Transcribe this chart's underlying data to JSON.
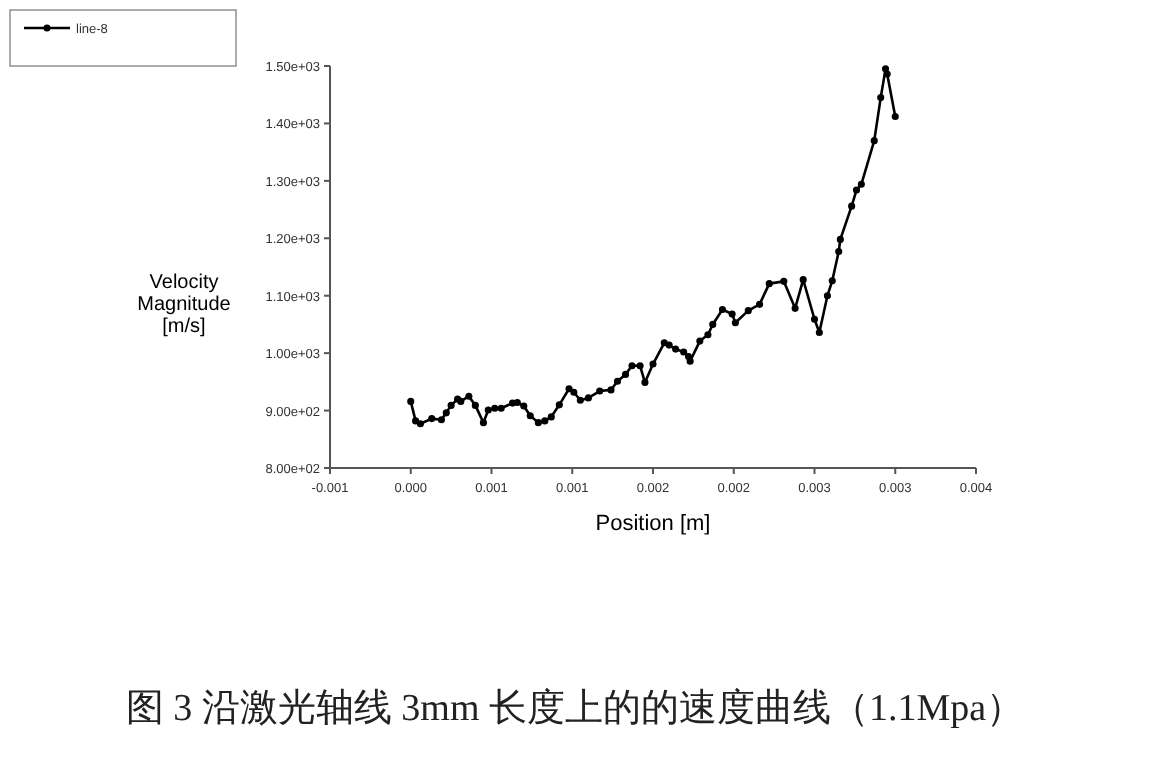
{
  "chart_data": {
    "type": "line",
    "xlabel": "Position [m]",
    "ylabel": "Velocity\nMagnitude\n[m/s]",
    "annotations": [
      "图 3 沿激光轴线 3mm 长度上的的速度曲线（1.1Mpa）"
    ],
    "xlim": [
      -0.0005,
      0.0035
    ],
    "xticks": [
      {
        "value": -0.0005,
        "label": "-0.001"
      },
      {
        "value": 0,
        "label": "0.000"
      },
      {
        "value": 0.0005,
        "label": "0.001"
      },
      {
        "value": 0.001,
        "label": "0.001"
      },
      {
        "value": 0.0015,
        "label": "0.002"
      },
      {
        "value": 0.002,
        "label": "0.002"
      },
      {
        "value": 0.0025,
        "label": "0.003"
      },
      {
        "value": 0.003,
        "label": "0.003"
      },
      {
        "value": 0.0035,
        "label": "0.004"
      }
    ],
    "ylim": [
      800,
      1500
    ],
    "yticks": [
      {
        "value": 800,
        "label": "8.00e+02"
      },
      {
        "value": 900,
        "label": "9.00e+02"
      },
      {
        "value": 1000,
        "label": "1.00e+03"
      },
      {
        "value": 1100,
        "label": "1.10e+03"
      },
      {
        "value": 1200,
        "label": "1.20e+03"
      },
      {
        "value": 1300,
        "label": "1.30e+03"
      },
      {
        "value": 1400,
        "label": "1.40e+03"
      },
      {
        "value": 1500,
        "label": "1.50e+03"
      }
    ],
    "legend": "top left",
    "marker": "circle",
    "grid": false,
    "series": [
      {
        "name": "line-8",
        "color": "#000000",
        "x": [
          0,
          3e-05,
          6e-05,
          0.00013,
          0.00019,
          0.00022,
          0.00025,
          0.00029,
          0.00031,
          0.00036,
          0.0004,
          0.00045,
          0.00048,
          0.00052,
          0.00056,
          0.00063,
          0.00066,
          0.0007,
          0.00074,
          0.00079,
          0.00083,
          0.00087,
          0.00092,
          0.00098,
          0.00101,
          0.00105,
          0.0011,
          0.00117,
          0.00124,
          0.00128,
          0.00133,
          0.00137,
          0.00142,
          0.00145,
          0.0015,
          0.00157,
          0.0016,
          0.00164,
          0.00169,
          0.00172,
          0.00173,
          0.00179,
          0.00184,
          0.00187,
          0.00193,
          0.00199,
          0.00201,
          0.00209,
          0.00216,
          0.00222,
          0.00231,
          0.00238,
          0.00243,
          0.0025,
          0.00253,
          0.00258,
          0.00261,
          0.00265,
          0.00266,
          0.00273,
          0.00276,
          0.00279,
          0.00287,
          0.00291,
          0.00294,
          0.00295,
          0.003
        ],
        "values": [
          916,
          882,
          877,
          886,
          884,
          896,
          909,
          920,
          916,
          925,
          909,
          879,
          901,
          904,
          904,
          913,
          914,
          908,
          891,
          879,
          882,
          889,
          910,
          938,
          932,
          918,
          922,
          934,
          936,
          951,
          963,
          978,
          978,
          949,
          981,
          1018,
          1014,
          1007,
          1002,
          994,
          986,
          1021,
          1032,
          1050,
          1076,
          1068,
          1053,
          1074,
          1085,
          1121,
          1125,
          1078,
          1128,
          1059,
          1036,
          1100,
          1126,
          1177,
          1198,
          1256,
          1284,
          1294,
          1370,
          1445,
          1495,
          1486,
          1412
        ]
      }
    ]
  }
}
